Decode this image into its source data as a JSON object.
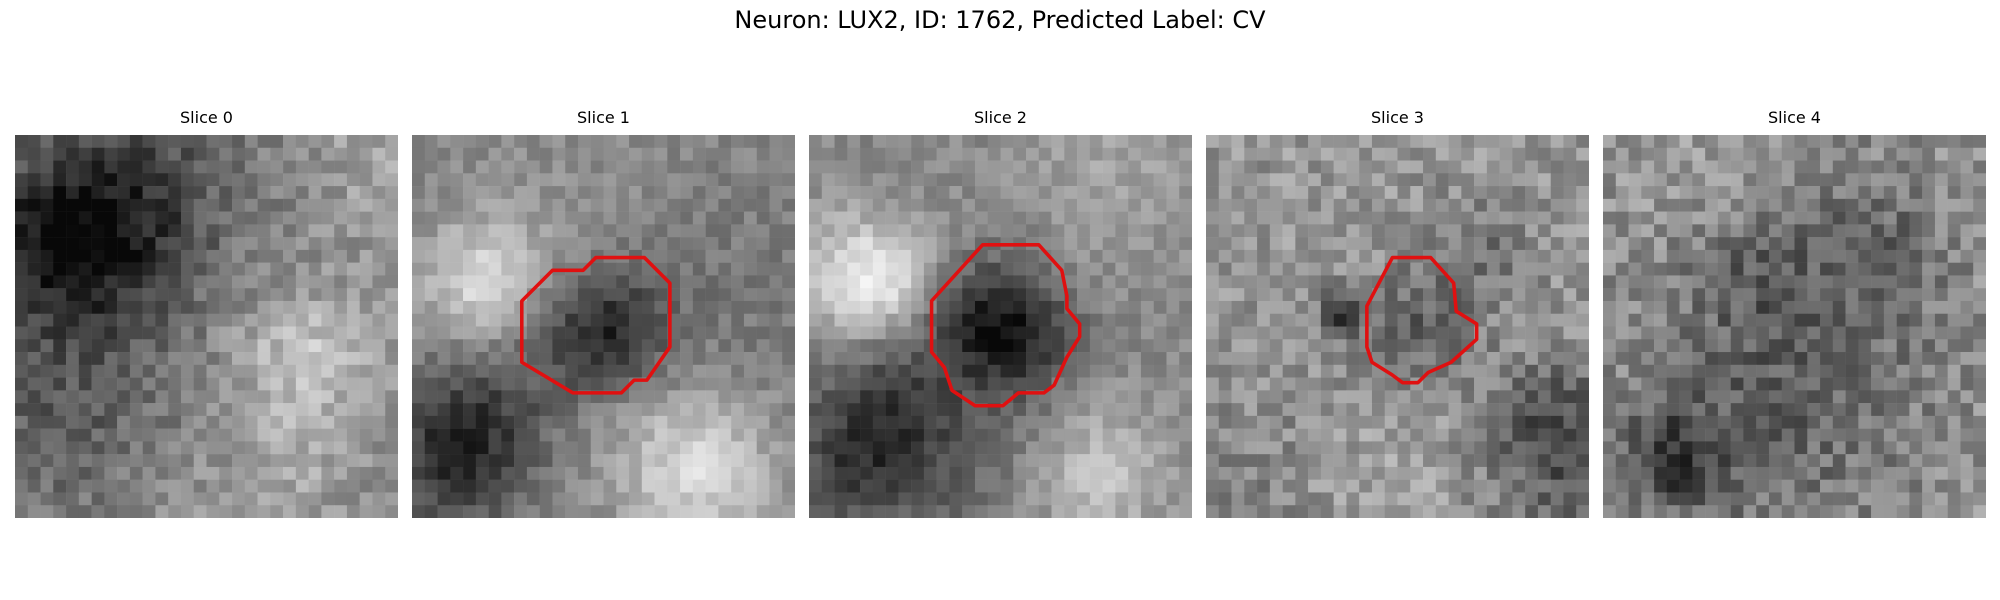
{
  "figure": {
    "title": "Neuron: LUX2, ID: 1762, Predicted Label: CV"
  },
  "slices": [
    {
      "title": "Slice 0",
      "has_contour": false,
      "seed": 11,
      "pattern": "diffuse"
    },
    {
      "title": "Slice 1",
      "has_contour": true,
      "seed": 23,
      "pattern": "dark-center-strong"
    },
    {
      "title": "Slice 2",
      "has_contour": true,
      "seed": 37,
      "pattern": "dark-center-strong"
    },
    {
      "title": "Slice 3",
      "has_contour": true,
      "seed": 41,
      "pattern": "dark-center-weak"
    },
    {
      "title": "Slice 4",
      "has_contour": false,
      "seed": 53,
      "pattern": "noise"
    }
  ],
  "colors": {
    "contour": "#e01010",
    "background": "#ffffff"
  }
}
